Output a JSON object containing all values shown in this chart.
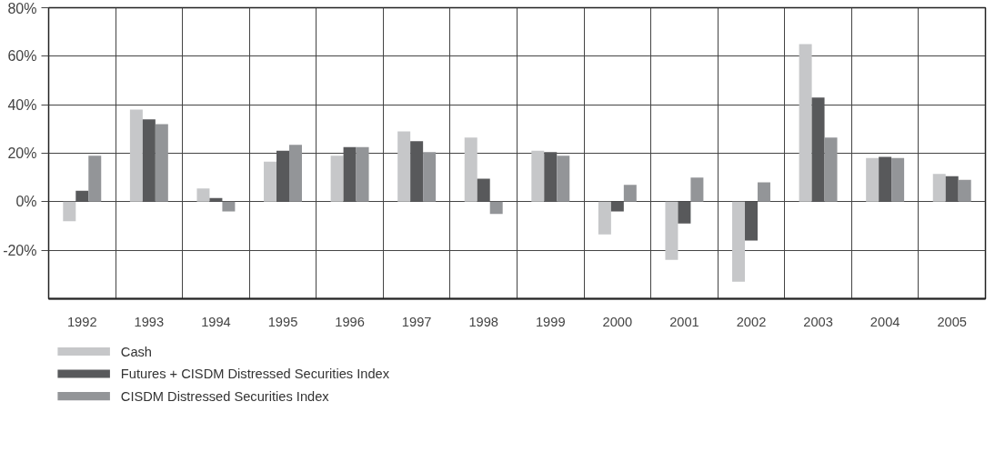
{
  "chart_data": {
    "type": "bar",
    "categories": [
      "1992",
      "1993",
      "1994",
      "1995",
      "1996",
      "1997",
      "1998",
      "1999",
      "2000",
      "2001",
      "2002",
      "2003",
      "2004",
      "2005"
    ],
    "series": [
      {
        "name": "Cash",
        "color": "#c6c7c9",
        "values": [
          -8,
          38,
          5.5,
          16.5,
          19,
          29,
          26.5,
          21,
          -13.5,
          -24,
          -33,
          65,
          18,
          11.5
        ]
      },
      {
        "name": "Futures + CISDM Distressed Securities Index",
        "color": "#58595b",
        "values": [
          4.5,
          34,
          1.5,
          21,
          22.5,
          25,
          9.5,
          20.5,
          -4,
          -9,
          -16,
          43,
          18.5,
          10.5
        ]
      },
      {
        "name": "CISDM Distressed Securities Index",
        "color": "#939598",
        "values": [
          19,
          32,
          -4,
          23.5,
          22.5,
          20.5,
          -5,
          19,
          7,
          10,
          8,
          26.5,
          18,
          9
        ]
      }
    ],
    "ylim": [
      -40,
      80
    ],
    "yticks": [
      {
        "value": -20,
        "label": "-20%"
      },
      {
        "value": 0,
        "label": "0%"
      },
      {
        "value": 20,
        "label": "20%"
      },
      {
        "value": 40,
        "label": "40%"
      },
      {
        "value": 60,
        "label": "60%"
      },
      {
        "value": 80,
        "label": "80%"
      }
    ],
    "grid": true,
    "legend": "bottom"
  }
}
